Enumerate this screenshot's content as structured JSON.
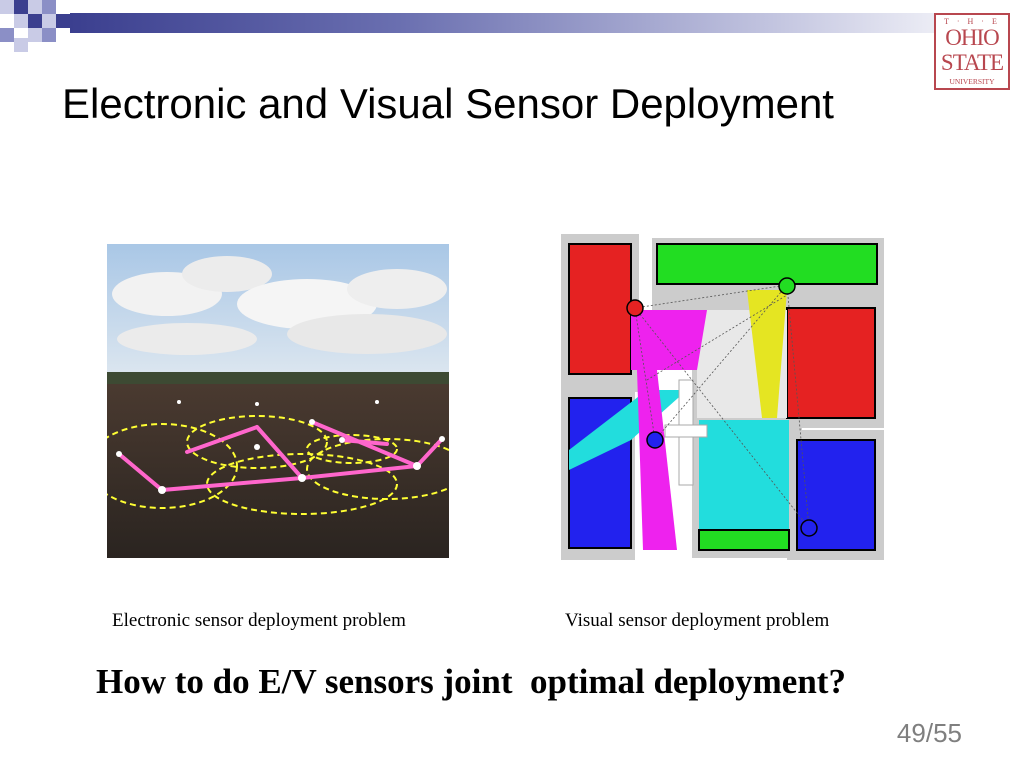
{
  "slide": {
    "title": "Electronic and Visual Sensor Deployment",
    "captions": {
      "electronic": "Electronic sensor deployment problem",
      "visual": "Visual sensor deployment problem"
    },
    "question": "How to do E/V sensors joint  optimal deployment?",
    "page_number": "49/55"
  },
  "logo": {
    "line_the": "T · H · E",
    "line_1": "OHIO",
    "line_2": "STATE",
    "line_3": "UNIVERSITY",
    "color": "#b8474f"
  },
  "colors": {
    "title_bar": "#3b3f8f",
    "link_line": "#ff69b4",
    "coverage_circle": "#ffff00",
    "room_red": "#e52222",
    "room_green": "#22dd22",
    "room_blue": "#2222ee",
    "room_magenta": "#ee22ee",
    "room_cyan": "#22dddd",
    "room_yellow": "#e5e522"
  }
}
